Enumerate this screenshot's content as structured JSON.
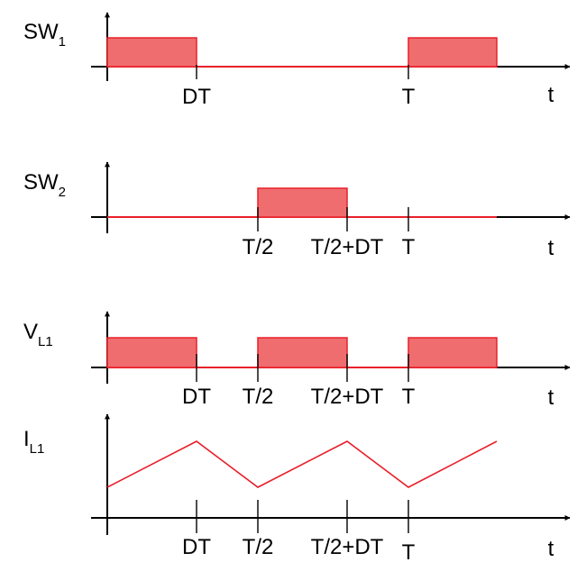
{
  "colors": {
    "waveform": "#e8202a",
    "fill": "#f06d6f",
    "axis": "#000000"
  },
  "axis_label": "t",
  "panels": [
    {
      "id": "sw1",
      "label": {
        "main": "SW",
        "sub": "1"
      },
      "type": "pulse",
      "pulses": [
        [
          "0",
          "DT"
        ],
        [
          "T",
          "T+DT"
        ]
      ],
      "ticks": [
        {
          "at": "DT",
          "label": "DT"
        },
        {
          "at": "T",
          "label": "T"
        }
      ]
    },
    {
      "id": "sw2",
      "label": {
        "main": "SW",
        "sub": "2"
      },
      "type": "pulse",
      "pulses": [
        [
          "T/2",
          "T/2+DT"
        ]
      ],
      "ticks": [
        {
          "at": "T/2",
          "label": "T/2"
        },
        {
          "at": "T/2+DT",
          "label": "T/2+DT"
        },
        {
          "at": "T",
          "label": "T"
        }
      ]
    },
    {
      "id": "vl1",
      "label": {
        "main": "V",
        "sub": "L1"
      },
      "type": "pulse",
      "pulses": [
        [
          "0",
          "DT"
        ],
        [
          "T/2",
          "T/2+DT"
        ],
        [
          "T",
          "T+DT"
        ]
      ],
      "ticks": [
        {
          "at": "DT",
          "label": "DT"
        },
        {
          "at": "T/2",
          "label": "T/2"
        },
        {
          "at": "T/2+DT",
          "label": "T/2+DT"
        },
        {
          "at": "T",
          "label": "T"
        }
      ]
    },
    {
      "id": "il1",
      "label": {
        "main": "I",
        "sub": "L1"
      },
      "type": "triangle",
      "vertices": [
        [
          "0",
          "low"
        ],
        [
          "DT",
          "high"
        ],
        [
          "T/2",
          "low"
        ],
        [
          "T/2+DT",
          "high"
        ],
        [
          "T",
          "low"
        ],
        [
          "T+DT",
          "high"
        ]
      ],
      "ticks": [
        {
          "at": "DT",
          "label": "DT"
        },
        {
          "at": "T/2",
          "label": "T/2"
        },
        {
          "at": "T/2+DT",
          "label": "T/2+DT"
        },
        {
          "at": "T",
          "label": "T"
        }
      ]
    }
  ]
}
